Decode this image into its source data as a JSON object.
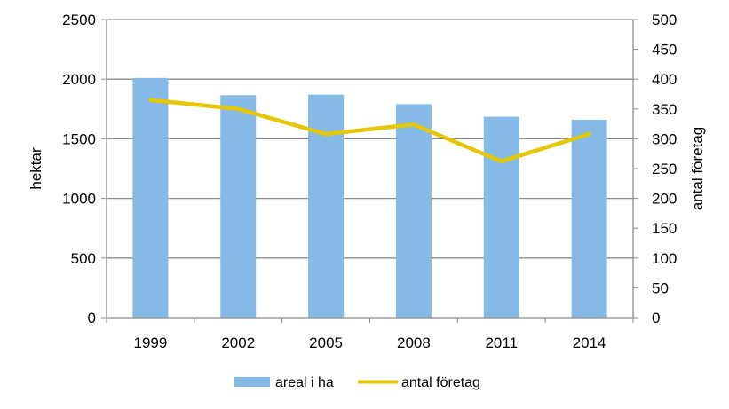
{
  "chart_data": {
    "type": "bar+line",
    "categories": [
      "1999",
      "2002",
      "2005",
      "2008",
      "2011",
      "2014"
    ],
    "series": [
      {
        "name": "areal i ha",
        "type": "bar",
        "axis": "left",
        "color": "#85B9E6",
        "values": [
          2010,
          1865,
          1870,
          1790,
          1685,
          1660
        ]
      },
      {
        "name": "antal företag",
        "type": "line",
        "axis": "right",
        "color": "#E5C700",
        "values": [
          365,
          350,
          308,
          324,
          262,
          308
        ]
      }
    ],
    "ylabel": "hektar",
    "y2label": "antal företag",
    "ylim": [
      0,
      2500
    ],
    "y2lim": [
      0,
      500
    ],
    "yticks": [
      "0",
      "500",
      "1000",
      "1500",
      "2000",
      "2500"
    ],
    "y2ticks": [
      "0",
      "50",
      "100",
      "150",
      "200",
      "250",
      "300",
      "350",
      "400",
      "450",
      "500"
    ],
    "grid": true,
    "legend_position": "bottom"
  }
}
